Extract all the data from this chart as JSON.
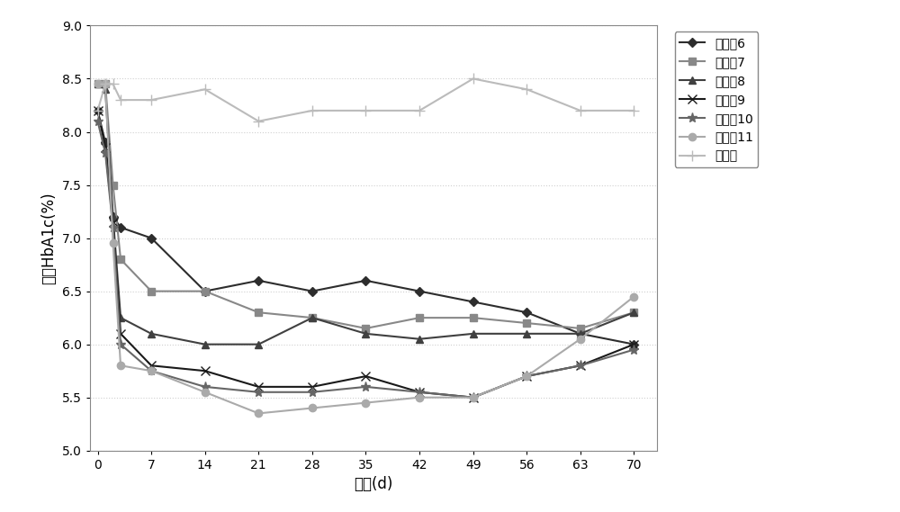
{
  "x": [
    0,
    1,
    2,
    3,
    7,
    14,
    21,
    28,
    35,
    42,
    49,
    56,
    63,
    70
  ],
  "series": [
    {
      "name": "实施兦6",
      "y": [
        8.2,
        7.9,
        7.2,
        7.1,
        7.0,
        6.5,
        6.6,
        6.5,
        6.6,
        6.5,
        6.4,
        6.3,
        6.1,
        6.0
      ],
      "color": "#2d2d2d",
      "marker": "D",
      "markersize": 5,
      "linewidth": 1.5
    },
    {
      "name": "实施兦7",
      "y": [
        8.45,
        8.45,
        7.5,
        6.8,
        6.5,
        6.5,
        6.3,
        6.25,
        6.15,
        6.25,
        6.25,
        6.2,
        6.15,
        6.3
      ],
      "color": "#888888",
      "marker": "s",
      "markersize": 6,
      "linewidth": 1.5
    },
    {
      "name": "实施兦8",
      "y": [
        8.45,
        8.4,
        7.2,
        6.25,
        6.1,
        6.0,
        6.0,
        6.25,
        6.1,
        6.05,
        6.1,
        6.1,
        6.1,
        6.3
      ],
      "color": "#404040",
      "marker": "^",
      "markersize": 6,
      "linewidth": 1.5
    },
    {
      "name": "实施兦9",
      "y": [
        8.2,
        7.85,
        7.15,
        6.1,
        5.8,
        5.75,
        5.6,
        5.6,
        5.7,
        5.55,
        5.5,
        5.7,
        5.8,
        6.0
      ],
      "color": "#1a1a1a",
      "marker": "x",
      "markersize": 7,
      "linewidth": 1.5
    },
    {
      "name": "实施兦10",
      "y": [
        8.1,
        7.8,
        7.1,
        6.0,
        5.75,
        5.6,
        5.55,
        5.55,
        5.6,
        5.55,
        5.5,
        5.7,
        5.8,
        5.95
      ],
      "color": "#666666",
      "marker": "*",
      "markersize": 8,
      "linewidth": 1.5
    },
    {
      "name": "实施兦11",
      "y": [
        8.45,
        8.45,
        6.95,
        5.8,
        5.75,
        5.55,
        5.35,
        5.4,
        5.45,
        5.5,
        5.5,
        5.7,
        6.05,
        6.45
      ],
      "color": "#aaaaaa",
      "marker": "o",
      "markersize": 6,
      "linewidth": 1.5
    },
    {
      "name": "空白组",
      "y": [
        8.2,
        8.45,
        8.45,
        8.3,
        8.3,
        8.4,
        8.1,
        8.2,
        8.2,
        8.2,
        8.5,
        8.4,
        8.2,
        8.2
      ],
      "color": "#bbbbbb",
      "marker": "+",
      "markersize": 8,
      "linewidth": 1.5
    }
  ],
  "xlabel": "时间(d)",
  "ylabel": "平均HbA1c(%)",
  "xlim": [
    -1,
    73
  ],
  "ylim": [
    5.0,
    9.0
  ],
  "yticks": [
    5.0,
    5.5,
    6.0,
    6.5,
    7.0,
    7.5,
    8.0,
    8.5,
    9.0
  ],
  "xticks": [
    0,
    7,
    14,
    21,
    28,
    35,
    42,
    49,
    56,
    63,
    70
  ],
  "background_color": "#ffffff",
  "grid_color": "#d0d0d0",
  "figsize": [
    10.0,
    5.69
  ],
  "dpi": 100
}
